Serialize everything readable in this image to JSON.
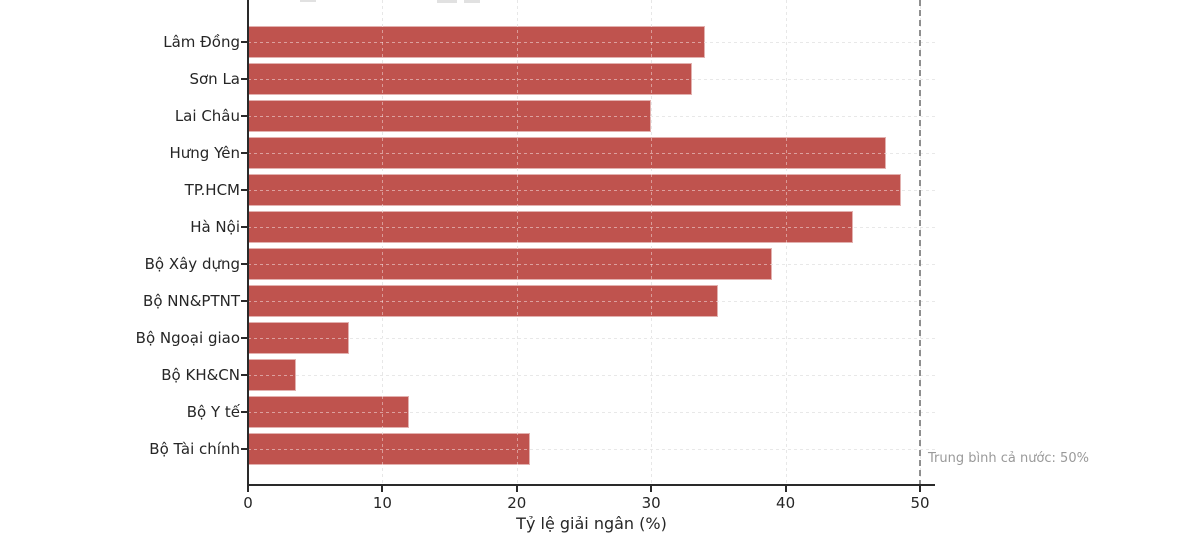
{
  "chart_data": {
    "type": "bar",
    "orientation": "horizontal",
    "title": "",
    "xlabel": "Tỷ lệ giải ngân (%)",
    "ylabel": "",
    "categories": [
      "Lâm Đồng",
      "Sơn La",
      "Lai Châu",
      "Hưng Yên",
      "TP.HCM",
      "Hà Nội",
      "Bộ Xây dựng",
      "Bộ NN&PTNT",
      "Bộ Ngoại giao",
      "Bộ KH&CN",
      "Bộ Y tế",
      "Bộ Tài chính"
    ],
    "values": [
      34,
      33,
      30,
      47.5,
      48.6,
      45,
      39,
      35,
      7.5,
      3.6,
      12,
      21
    ],
    "xticks": [
      0,
      10,
      20,
      30,
      40,
      50
    ],
    "xlim": [
      0,
      51.2
    ],
    "grid": "dashed, both axes, drawn above bars",
    "legend_position": "none",
    "bar_color": "#bf534e",
    "bar_edge_color": "rgba(255,255,255,0.55)",
    "reference_line": {
      "x": 50,
      "label": "Trung bình cả nước: 50%",
      "color": "#8f8f8f",
      "style": "dashed"
    }
  }
}
